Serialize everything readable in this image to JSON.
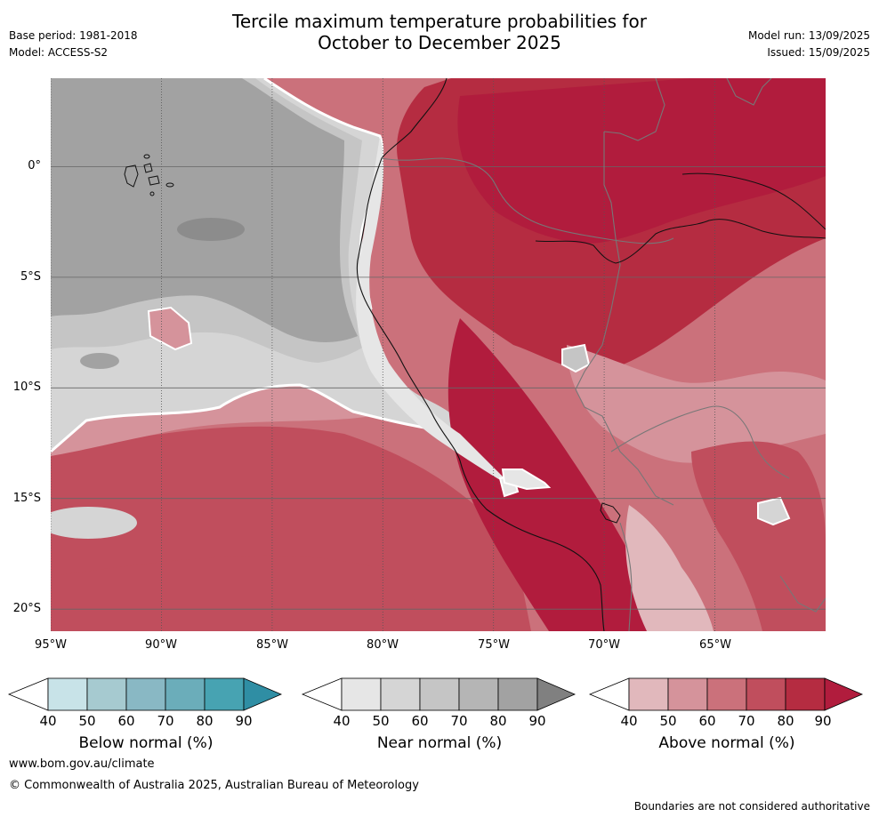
{
  "header": {
    "title_line1": "Tercile maximum temperature probabilities for",
    "title_line2": "October to December 2025",
    "base_period": "Base period: 1981-2018",
    "model": "Model: ACCESS-S2",
    "model_run": "Model run: 13/09/2025",
    "issued": "Issued: 15/09/2025"
  },
  "map": {
    "lon_range": [
      -95,
      -60
    ],
    "lat_range": [
      -21,
      4
    ],
    "y_ticks": [
      "0°",
      "5°S",
      "10°S",
      "15°S",
      "20°S"
    ],
    "x_ticks": [
      "95°W",
      "90°W",
      "85°W",
      "80°W",
      "75°W",
      "70°W",
      "65°W"
    ]
  },
  "legends": [
    {
      "label": "Below normal (%)",
      "ticks": [
        "40",
        "50",
        "60",
        "70",
        "80",
        "90"
      ],
      "colors": [
        "#ffffff",
        "#c8e3e8",
        "#a6cad0",
        "#89b8c4",
        "#6badba",
        "#47a3b2",
        "#2f8ea4"
      ]
    },
    {
      "label": "Near normal (%)",
      "ticks": [
        "40",
        "50",
        "60",
        "70",
        "80",
        "90"
      ],
      "colors": [
        "#ffffff",
        "#e6e6e6",
        "#d5d5d5",
        "#c5c5c5",
        "#b5b5b5",
        "#a2a2a2",
        "#808080"
      ]
    },
    {
      "label": "Above normal (%)",
      "ticks": [
        "40",
        "50",
        "60",
        "70",
        "80",
        "90"
      ],
      "colors": [
        "#ffffff",
        "#e1b8bc",
        "#d5939b",
        "#cb717b",
        "#c04e5d",
        "#b52c41",
        "#b11c3d"
      ]
    }
  ],
  "footer": {
    "website": "www.bom.gov.au/climate",
    "copyright": "© Commonwealth of Australia 2025, Australian Bureau of Meteorology",
    "disclaimer": "Boundaries are not considered authoritative"
  }
}
